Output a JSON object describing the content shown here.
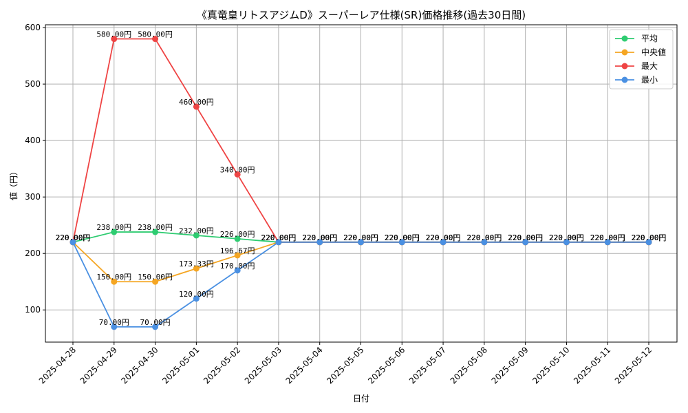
{
  "chart_data": {
    "type": "line",
    "title": "《真竜皇リトスアジムD》スーパーレア仕様(SR)価格推移(過去30日間)",
    "xlabel": "日付",
    "ylabel": "値（円）",
    "categories": [
      "2025-04-28",
      "2025-04-29",
      "2025-04-30",
      "2025-05-01",
      "2025-05-02",
      "2025-05-03",
      "2025-05-04",
      "2025-05-05",
      "2025-05-06",
      "2025-05-07",
      "2025-05-08",
      "2025-05-09",
      "2025-05-10",
      "2025-05-11",
      "2025-05-12"
    ],
    "yticks": [
      100,
      200,
      300,
      400,
      500,
      600
    ],
    "ylim": [
      43,
      605
    ],
    "grid": true,
    "legend_position": "top-right",
    "series": [
      {
        "name": "平均",
        "color": "#2ecc71",
        "values": [
          220,
          238,
          238,
          232,
          226,
          220,
          220,
          220,
          220,
          220,
          220,
          220,
          220,
          220,
          220
        ],
        "labels": [
          "220.00円",
          "238.00円",
          "238.00円",
          "232.00円",
          "226.00円",
          "220.00円",
          "220.00円",
          "220.00円",
          "220.00円",
          "220.00円",
          "220.00円",
          "220.00円",
          "220.00円",
          "220.00円",
          "220.00円"
        ]
      },
      {
        "name": "中央値",
        "color": "#f5a623",
        "values": [
          220,
          150,
          150,
          173.33,
          196.67,
          220,
          220,
          220,
          220,
          220,
          220,
          220,
          220,
          220,
          220
        ],
        "labels": [
          "220.00円",
          "150.00円",
          "150.00円",
          "173.33円",
          "196.67円",
          "220.00円",
          "220.00円",
          "220.00円",
          "220.00円",
          "220.00円",
          "220.00円",
          "220.00円",
          "220.00円",
          "220.00円",
          "220.00円"
        ]
      },
      {
        "name": "最大",
        "color": "#ef4444",
        "values": [
          220,
          580,
          580,
          460,
          340,
          220,
          220,
          220,
          220,
          220,
          220,
          220,
          220,
          220,
          220
        ],
        "labels": [
          "220.00円",
          "580.00円",
          "580.00円",
          "460.00円",
          "340.00円",
          "220.00円",
          "220.00円",
          "220.00円",
          "220.00円",
          "220.00円",
          "220.00円",
          "220.00円",
          "220.00円",
          "220.00円",
          "220.00円"
        ]
      },
      {
        "name": "最小",
        "color": "#4a90e2",
        "values": [
          220,
          70,
          70,
          120,
          170,
          220,
          220,
          220,
          220,
          220,
          220,
          220,
          220,
          220,
          220
        ],
        "labels": [
          "220.00円",
          "70.00円",
          "70.00円",
          "120.00円",
          "170.00円",
          "220.00円",
          "220.00円",
          "220.00円",
          "220.00円",
          "220.00円",
          "220.00円",
          "220.00円",
          "220.00円",
          "220.00円",
          "220.00円"
        ]
      }
    ]
  }
}
